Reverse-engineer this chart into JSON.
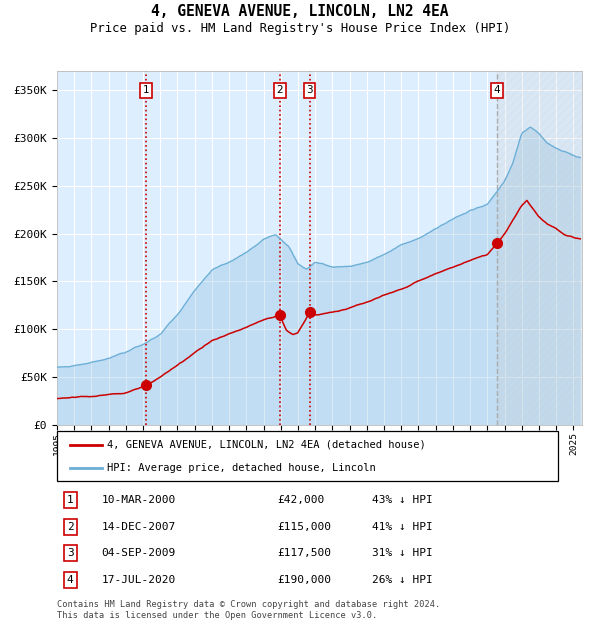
{
  "title": "4, GENEVA AVENUE, LINCOLN, LN2 4EA",
  "subtitle": "Price paid vs. HM Land Registry's House Price Index (HPI)",
  "hpi_label": "HPI: Average price, detached house, Lincoln",
  "property_label": "4, GENEVA AVENUE, LINCOLN, LN2 4EA (detached house)",
  "footnote": "Contains HM Land Registry data © Crown copyright and database right 2024.\nThis data is licensed under the Open Government Licence v3.0.",
  "transactions": [
    {
      "num": 1,
      "date": "10-MAR-2000",
      "price": 42000,
      "pct": "43% ↓ HPI",
      "year": 2000.19
    },
    {
      "num": 2,
      "date": "14-DEC-2007",
      "price": 115000,
      "pct": "41% ↓ HPI",
      "year": 2007.95
    },
    {
      "num": 3,
      "date": "04-SEP-2009",
      "price": 117500,
      "pct": "31% ↓ HPI",
      "year": 2009.67
    },
    {
      "num": 4,
      "date": "17-JUL-2020",
      "price": 190000,
      "pct": "26% ↓ HPI",
      "year": 2020.54
    }
  ],
  "xlim": [
    1995.0,
    2025.5
  ],
  "ylim": [
    0,
    370000
  ],
  "yticks": [
    0,
    50000,
    100000,
    150000,
    200000,
    250000,
    300000,
    350000
  ],
  "ytick_labels": [
    "£0",
    "£50K",
    "£100K",
    "£150K",
    "£200K",
    "£250K",
    "£300K",
    "£350K"
  ],
  "hpi_color": "#6baed6",
  "property_color": "#cc0000",
  "bg_color": "#ddeeff",
  "grid_color": "#ffffff"
}
